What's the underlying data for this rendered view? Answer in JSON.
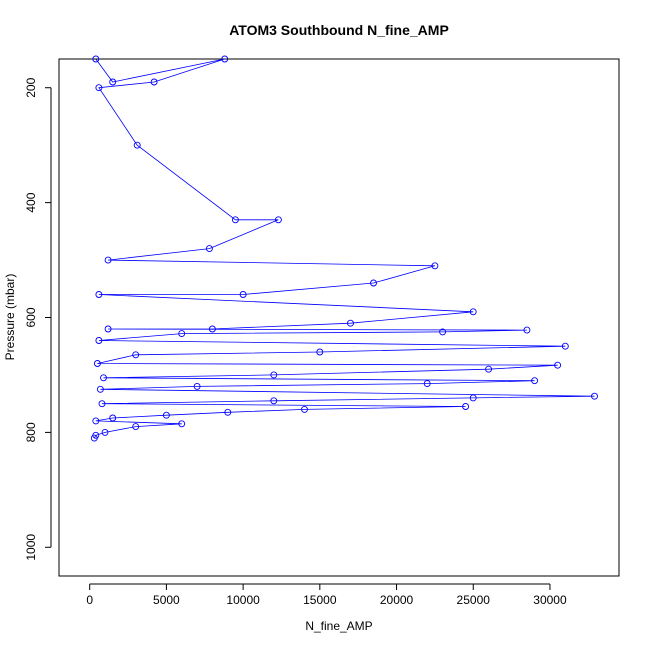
{
  "chart_data": {
    "type": "scatter",
    "title": "ATOM3 Southbound N_fine_AMP",
    "xlabel": "N_fine_AMP",
    "ylabel": "Pressure (mbar)",
    "xlim": [
      -2000,
      34500
    ],
    "ylim": [
      1050,
      150
    ],
    "y_reversed": true,
    "grid": false,
    "legend": "none",
    "color": "#0000ff",
    "marker": "open-circle",
    "connected": true,
    "xticks": [
      0,
      5000,
      10000,
      15000,
      20000,
      25000,
      30000
    ],
    "xtick_labels": [
      "0",
      "5000",
      "10000",
      "15000",
      "20000",
      "25000",
      "30000"
    ],
    "yticks": [
      200,
      400,
      600,
      800,
      1000
    ],
    "ytick_labels": [
      "200",
      "400",
      "600",
      "800",
      "1000"
    ],
    "series": [
      {
        "x": [
          400,
          1500,
          8800,
          4200,
          600,
          3100,
          9500,
          12300,
          7800,
          1200,
          22500,
          18500,
          10000,
          600,
          25000,
          17000,
          8000,
          1200,
          28500,
          23000,
          6000,
          600,
          31000,
          15000,
          3000,
          500,
          30500,
          26000,
          12000,
          900,
          29000,
          22000,
          7000,
          700,
          32900,
          25000,
          12000,
          800,
          24500,
          14000,
          9000,
          5000,
          1500,
          400,
          6000,
          3000,
          1000,
          400,
          300
        ],
        "y": [
          150,
          190,
          150,
          190,
          200,
          300,
          430,
          430,
          480,
          500,
          510,
          540,
          560,
          560,
          590,
          610,
          620,
          620,
          622,
          625,
          628,
          640,
          650,
          660,
          665,
          680,
          683,
          690,
          700,
          705,
          710,
          715,
          720,
          725,
          737,
          740,
          745,
          750,
          755,
          760,
          765,
          770,
          775,
          780,
          785,
          790,
          800,
          805,
          810
        ]
      }
    ]
  }
}
